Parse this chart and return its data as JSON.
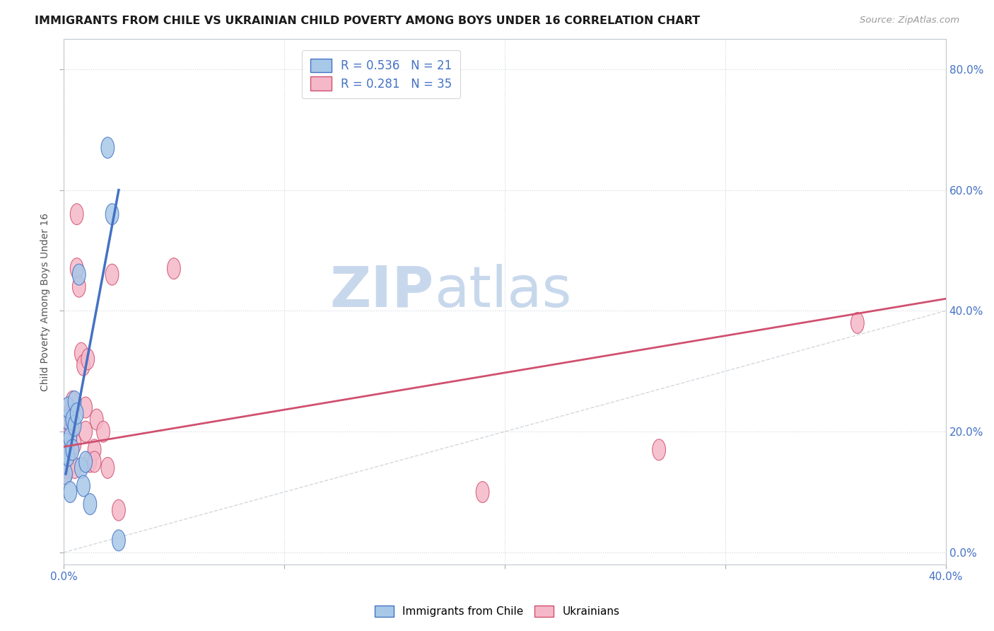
{
  "title": "IMMIGRANTS FROM CHILE VS UKRAINIAN CHILD POVERTY AMONG BOYS UNDER 16 CORRELATION CHART",
  "source": "Source: ZipAtlas.com",
  "ylabel": "Child Poverty Among Boys Under 16",
  "xlim": [
    0.0,
    0.4
  ],
  "ylim": [
    -0.02,
    0.85
  ],
  "xticks": [
    0.0,
    0.1,
    0.2,
    0.3,
    0.4
  ],
  "xtick_labels_show": [
    "0.0%",
    "",
    "",
    "",
    "40.0%"
  ],
  "yticks": [
    0.0,
    0.2,
    0.4,
    0.6,
    0.8
  ],
  "ytick_labels_right": [
    "0.0%",
    "20.0%",
    "40.0%",
    "60.0%",
    "80.0%"
  ],
  "color_chile": "#a8c8e8",
  "color_ukraine": "#f5b8c8",
  "color_line_chile": "#4472c4",
  "color_line_ukraine": "#d05070",
  "color_diag": "#c0c8d0",
  "watermark_zip": "ZIP",
  "watermark_atlas": "atlas",
  "watermark_color": "#c8d8ec",
  "watermark_atlas_color": "#c8d8ec",
  "chile_x": [
    0.001,
    0.001,
    0.001,
    0.002,
    0.002,
    0.002,
    0.003,
    0.003,
    0.004,
    0.004,
    0.005,
    0.005,
    0.006,
    0.007,
    0.008,
    0.009,
    0.01,
    0.012,
    0.02,
    0.022,
    0.025
  ],
  "chile_y": [
    0.165,
    0.18,
    0.13,
    0.22,
    0.24,
    0.16,
    0.19,
    0.1,
    0.22,
    0.17,
    0.25,
    0.21,
    0.23,
    0.46,
    0.14,
    0.11,
    0.15,
    0.08,
    0.67,
    0.56,
    0.02
  ],
  "ukraine_x": [
    0.001,
    0.001,
    0.001,
    0.001,
    0.002,
    0.002,
    0.002,
    0.002,
    0.003,
    0.003,
    0.003,
    0.004,
    0.004,
    0.005,
    0.005,
    0.006,
    0.006,
    0.007,
    0.008,
    0.009,
    0.01,
    0.01,
    0.011,
    0.012,
    0.014,
    0.014,
    0.015,
    0.018,
    0.02,
    0.022,
    0.025,
    0.05,
    0.19,
    0.27,
    0.36
  ],
  "ukraine_y": [
    0.2,
    0.17,
    0.15,
    0.13,
    0.22,
    0.19,
    0.17,
    0.14,
    0.23,
    0.2,
    0.17,
    0.25,
    0.21,
    0.18,
    0.14,
    0.56,
    0.47,
    0.44,
    0.33,
    0.31,
    0.24,
    0.2,
    0.32,
    0.15,
    0.17,
    0.15,
    0.22,
    0.2,
    0.14,
    0.46,
    0.07,
    0.47,
    0.1,
    0.17,
    0.38
  ],
  "chile_line_x": [
    0.001,
    0.025
  ],
  "chile_line_y": [
    0.13,
    0.6
  ],
  "ukraine_line_x": [
    0.0,
    0.4
  ],
  "ukraine_line_y": [
    0.175,
    0.42
  ],
  "figsize": [
    14.06,
    8.92
  ],
  "dpi": 100
}
